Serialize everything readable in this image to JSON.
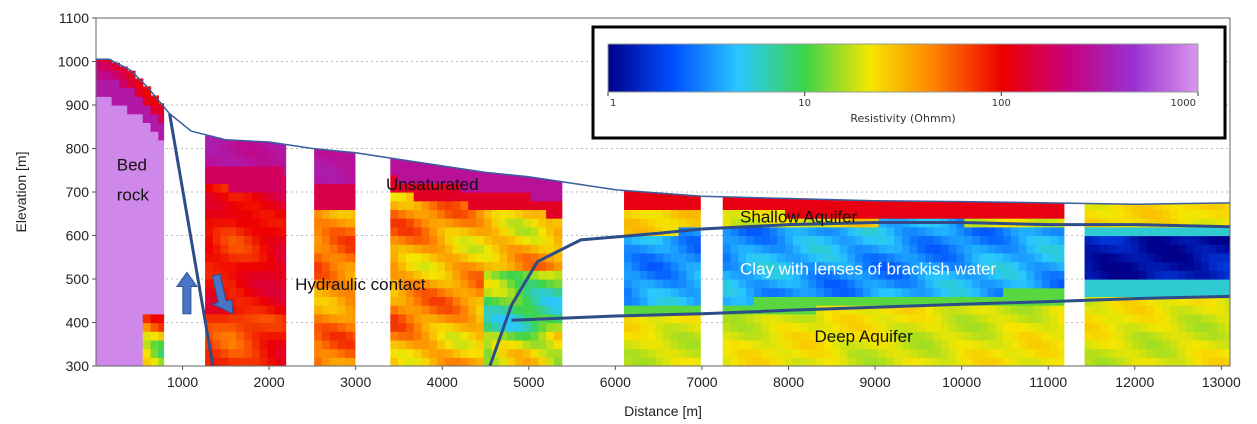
{
  "chart_data": {
    "type": "heatmap",
    "title": "",
    "xlabel": "Distance [m]",
    "ylabel": "Elevation [m]",
    "xlim": [
      0,
      13100
    ],
    "ylim": [
      300,
      1100
    ],
    "x_ticks": [
      1000,
      2000,
      3000,
      4000,
      5000,
      6000,
      7000,
      8000,
      9000,
      10000,
      11000,
      12000,
      13000
    ],
    "y_ticks": [
      300,
      400,
      500,
      600,
      700,
      800,
      900,
      1000,
      1100
    ],
    "grid": true,
    "colorbar": {
      "title": "Resistivity (Ohmm)",
      "scale": "log",
      "range": [
        1,
        1000
      ],
      "ticks": [
        "1",
        "10",
        "100",
        "1000"
      ],
      "colors": [
        "#00008b",
        "#0050ff",
        "#29c8ff",
        "#3cd44b",
        "#f5e600",
        "#ff7f00",
        "#ee0000",
        "#c8007a",
        "#9a2fd0",
        "#d898ee"
      ]
    },
    "surface_profile": [
      [
        0,
        1005
      ],
      [
        150,
        1005
      ],
      [
        400,
        980
      ],
      [
        600,
        940
      ],
      [
        850,
        880
      ],
      [
        1100,
        840
      ],
      [
        1500,
        820
      ],
      [
        2000,
        815
      ],
      [
        2500,
        800
      ],
      [
        3000,
        790
      ],
      [
        3500,
        775
      ],
      [
        4000,
        760
      ],
      [
        4500,
        745
      ],
      [
        5000,
        735
      ],
      [
        5500,
        720
      ],
      [
        6000,
        705
      ],
      [
        7000,
        690
      ],
      [
        8000,
        685
      ],
      [
        9000,
        680
      ],
      [
        10000,
        678
      ],
      [
        11000,
        675
      ],
      [
        12000,
        672
      ],
      [
        13100,
        675
      ]
    ],
    "sections": [
      {
        "x": [
          0,
          780
        ],
        "profile": "bedrock"
      },
      {
        "x": [
          1260,
          2190
        ],
        "profile": "hydraulic"
      },
      {
        "x": [
          2520,
          2990
        ],
        "profile": "unsat_mid"
      },
      {
        "x": [
          3400,
          5380
        ],
        "profile": "central"
      },
      {
        "x": [
          6100,
          6980
        ],
        "profile": "layered"
      },
      {
        "x": [
          7240,
          11180
        ],
        "profile": "layered"
      },
      {
        "x": [
          11420,
          13100
        ],
        "profile": "layered_east"
      }
    ],
    "interfaces": {
      "fault": [
        [
          850,
          880
        ],
        [
          1350,
          300
        ]
      ],
      "shallow_clay_boundary": [
        [
          4550,
          300
        ],
        [
          4800,
          440
        ],
        [
          5100,
          540
        ],
        [
          5600,
          590
        ],
        [
          6500,
          605
        ],
        [
          7000,
          615
        ],
        [
          8000,
          625
        ],
        [
          9000,
          630
        ],
        [
          10000,
          630
        ],
        [
          11000,
          625
        ],
        [
          12000,
          625
        ],
        [
          13100,
          620
        ]
      ],
      "clay_deep_boundary": [
        [
          4800,
          405
        ],
        [
          6000,
          415
        ],
        [
          7000,
          420
        ],
        [
          8000,
          428
        ],
        [
          9000,
          435
        ],
        [
          10000,
          442
        ],
        [
          11000,
          448
        ],
        [
          12000,
          455
        ],
        [
          13100,
          460
        ]
      ]
    },
    "arrows": [
      {
        "x": 1050,
        "from": 420,
        "to": 515,
        "direction": "up"
      },
      {
        "x": 1440,
        "from": 510,
        "to": 415,
        "direction": "down"
      }
    ],
    "annotations": [
      {
        "text": "Bed",
        "x": 240,
        "y": 750,
        "color": "#111111"
      },
      {
        "text": "rock",
        "x": 240,
        "y": 680,
        "color": "#111111"
      },
      {
        "text": "Unsaturated",
        "x": 3350,
        "y": 705,
        "color": "#111111"
      },
      {
        "text": "Hydraulic contact",
        "x": 2300,
        "y": 475,
        "color": "#111111"
      },
      {
        "text": "Shallow Aquifer",
        "x": 7440,
        "y": 630,
        "color": "#111111"
      },
      {
        "text": "Clay with lenses of brackish water",
        "x": 7440,
        "y": 510,
        "color": "#ffffff"
      },
      {
        "text": "Deep Aquifer",
        "x": 8300,
        "y": 355,
        "color": "#111111"
      }
    ]
  }
}
